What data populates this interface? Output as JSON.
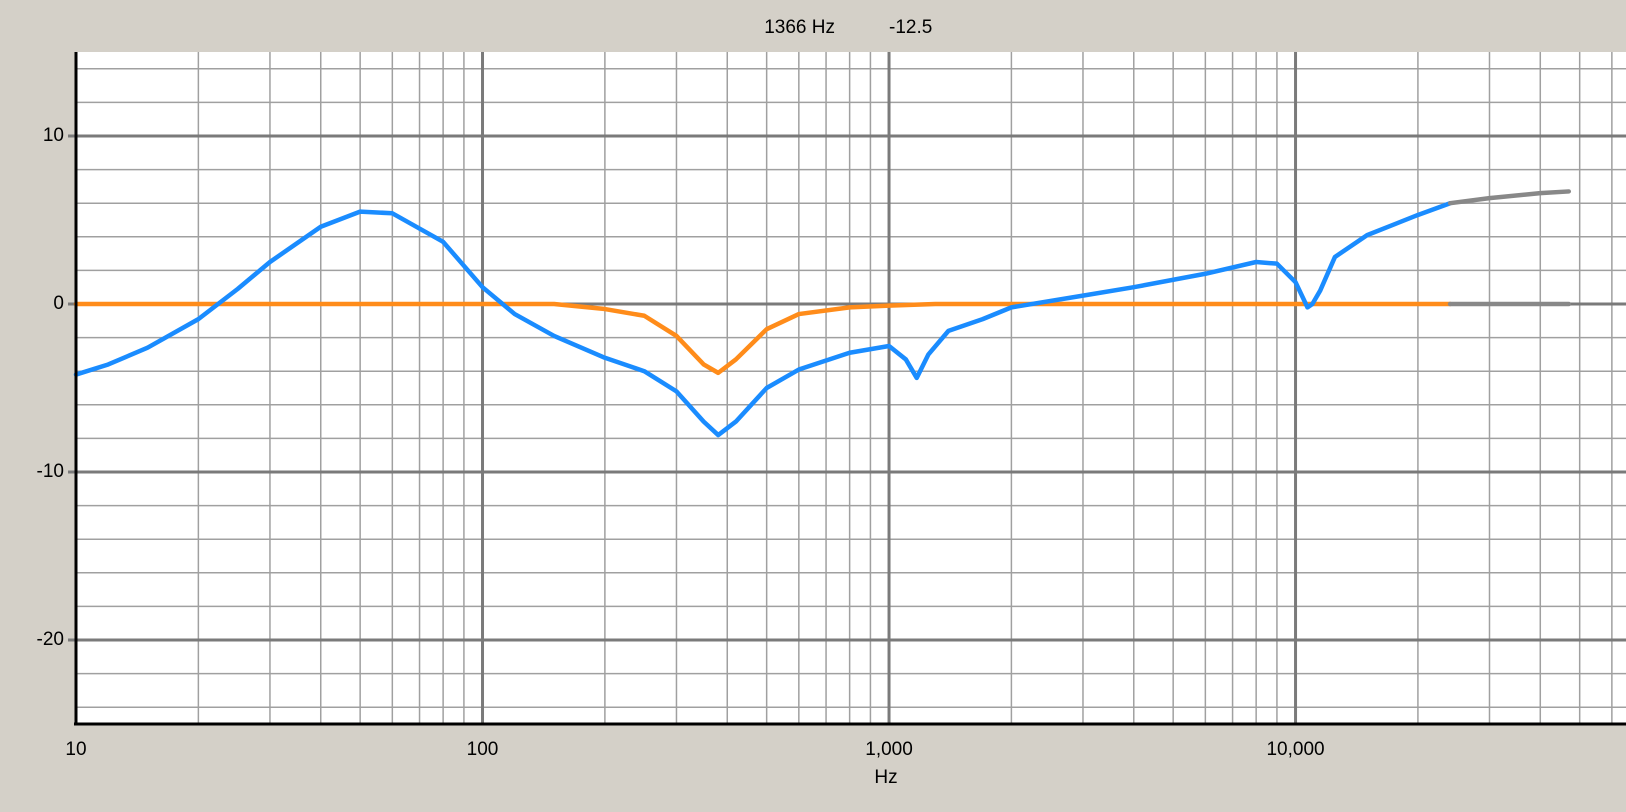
{
  "chart_data": {
    "type": "line",
    "readout": [
      "1366 Hz",
      "-12.5"
    ],
    "xlabel": "Hz",
    "log_x": true,
    "grid": true,
    "xlim": [
      10,
      65000
    ],
    "ylim": [
      -25,
      15
    ],
    "xticks": [
      10,
      100,
      {
        "value": 1000,
        "label": "1,000"
      },
      {
        "value": 10000,
        "label": "10,000"
      }
    ],
    "x_minor_ticks": [
      20,
      30,
      40,
      50,
      60,
      70,
      80,
      90,
      200,
      300,
      400,
      500,
      600,
      700,
      800,
      900,
      2000,
      3000,
      4000,
      5000,
      6000,
      7000,
      8000,
      9000,
      20000,
      30000,
      40000,
      50000,
      60000
    ],
    "yticks": [
      -20,
      -10,
      0,
      10
    ],
    "y_minor_ticks": [
      -24,
      -22,
      -18,
      -16,
      -14,
      -12,
      -8,
      -6,
      -4,
      -2,
      2,
      4,
      6,
      8,
      12,
      14
    ],
    "series": [
      {
        "color": "#ff8c1a",
        "x": [
          10,
          150,
          200,
          250,
          300,
          350,
          380,
          420,
          500,
          600,
          800,
          1000,
          1300,
          24000
        ],
        "values": [
          0,
          0,
          -0.3,
          -0.7,
          -1.9,
          -3.6,
          -4.1,
          -3.3,
          -1.5,
          -0.6,
          -0.2,
          -0.1,
          0,
          0
        ]
      },
      {
        "color": "#888888",
        "x": [
          24000,
          47000
        ],
        "values": [
          0,
          0
        ]
      },
      {
        "color": "#1a8cff",
        "x": [
          10,
          12,
          15,
          20,
          25,
          30,
          40,
          50,
          60,
          80,
          100,
          120,
          150,
          200,
          250,
          300,
          350,
          380,
          420,
          500,
          600,
          800,
          1000,
          1100,
          1170,
          1250,
          1400,
          1700,
          2000,
          3000,
          4000,
          6000,
          8000,
          9000,
          10000,
          10700,
          11000,
          11500,
          12500,
          15000,
          20000,
          24000
        ],
        "values": [
          -4.2,
          -3.6,
          -2.6,
          -0.9,
          0.9,
          2.5,
          4.6,
          5.5,
          5.4,
          3.7,
          1.0,
          -0.6,
          -1.9,
          -3.2,
          -4.0,
          -5.2,
          -7.0,
          -7.8,
          -7.0,
          -5.0,
          -3.9,
          -2.9,
          -2.5,
          -3.3,
          -4.4,
          -3.0,
          -1.6,
          -0.9,
          -0.2,
          0.5,
          1.0,
          1.8,
          2.5,
          2.4,
          1.3,
          -0.2,
          0,
          0.8,
          2.8,
          4.1,
          5.3,
          6.0
        ]
      },
      {
        "color": "#888888",
        "x": [
          24000,
          30000,
          40000,
          47000
        ],
        "values": [
          6.0,
          6.3,
          6.6,
          6.7
        ]
      }
    ]
  }
}
